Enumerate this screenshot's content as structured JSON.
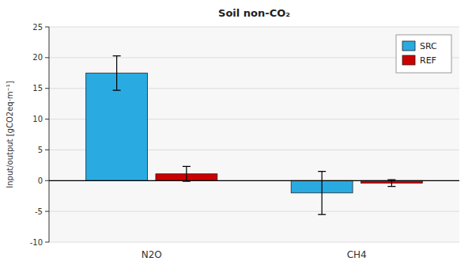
{
  "chart_data": {
    "type": "bar",
    "title": "Soil non-CO₂",
    "y_label": "Input/output [gCO2eq·m⁻¹]",
    "categories": [
      "N2O",
      "CH4"
    ],
    "series": [
      {
        "name": "SRC",
        "color": "#29ABE2",
        "values": [
          17.5,
          -2.0
        ],
        "errors": [
          2.8,
          3.5
        ]
      },
      {
        "name": "REF",
        "color": "#CC0000",
        "values": [
          1.1,
          -0.4
        ],
        "errors": [
          1.2,
          0.55
        ]
      }
    ],
    "ylim": [
      -10,
      25
    ],
    "yticks": [
      -10,
      -5,
      0,
      5,
      10,
      15,
      20,
      25
    ],
    "grid": true,
    "legend": "upper right"
  }
}
